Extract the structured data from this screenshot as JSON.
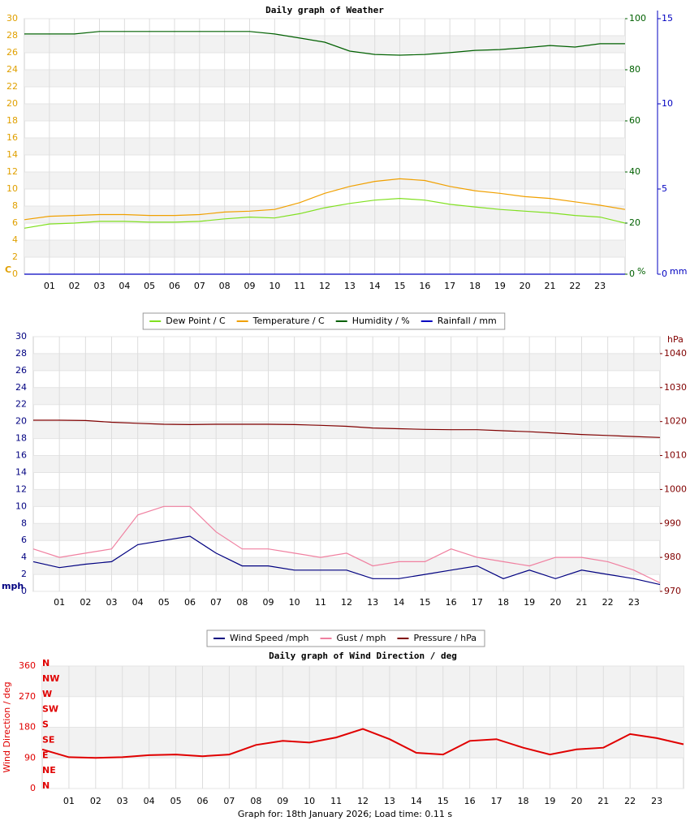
{
  "chart_data": [
    {
      "type": "line",
      "title": "Daily graph of Weather",
      "x": [
        0,
        1,
        2,
        3,
        4,
        5,
        6,
        7,
        8,
        9,
        10,
        11,
        12,
        13,
        14,
        15,
        16,
        17,
        18,
        19,
        20,
        21,
        22,
        23,
        24
      ],
      "xlim": [
        0,
        24
      ],
      "xticks": [
        {
          "value": 1,
          "label": "01"
        },
        {
          "value": 2,
          "label": "02"
        },
        {
          "value": 3,
          "label": "03"
        },
        {
          "value": 4,
          "label": "04"
        },
        {
          "value": 5,
          "label": "05"
        },
        {
          "value": 6,
          "label": "06"
        },
        {
          "value": 7,
          "label": "07"
        },
        {
          "value": 8,
          "label": "08"
        },
        {
          "value": 9,
          "label": "09"
        },
        10,
        11,
        12,
        13,
        14,
        15,
        16,
        17,
        18,
        19,
        20,
        21,
        22,
        23
      ],
      "ylim": [
        0,
        30
      ],
      "yticks": [
        0,
        2,
        4,
        6,
        8,
        10,
        12,
        14,
        16,
        18,
        20,
        22,
        24,
        26,
        28,
        30
      ],
      "y_unit": "C",
      "y2lim": [
        0,
        100
      ],
      "y2ticks": [
        0,
        20,
        40,
        60,
        80,
        100
      ],
      "y2_unit": "%",
      "y3lim": [
        0,
        15
      ],
      "y3ticks": [
        0,
        5,
        10,
        15
      ],
      "y3_unit": "mm",
      "grid": true,
      "legend": "bottom",
      "series": [
        {
          "name": "Dew Point / C",
          "color": "#80e020",
          "values": [
            5.4,
            5.9,
            6.0,
            6.2,
            6.2,
            6.1,
            6.1,
            6.2,
            6.5,
            6.7,
            6.6,
            7.1,
            7.8,
            8.3,
            8.7,
            8.9,
            8.7,
            8.2,
            7.9,
            7.6,
            7.4,
            7.2,
            6.9,
            6.7,
            6.0
          ]
        },
        {
          "name": "Temperature / C",
          "color": "#f0a000",
          "values": [
            6.4,
            6.8,
            6.9,
            7.0,
            7.0,
            6.9,
            6.9,
            7.0,
            7.3,
            7.4,
            7.6,
            8.4,
            9.5,
            10.3,
            10.9,
            11.2,
            11.0,
            10.3,
            9.8,
            9.5,
            9.1,
            8.9,
            8.5,
            8.1,
            7.6
          ]
        },
        {
          "name": "Humidity / %",
          "color": "#006000",
          "axis": "y2",
          "values": [
            94,
            94,
            94,
            95,
            95,
            95,
            95,
            95,
            95,
            95,
            94,
            92.4,
            90.8,
            87.3,
            86,
            85.7,
            86,
            86.7,
            87.6,
            87.9,
            88.6,
            89.5,
            88.9,
            90.2,
            90.2
          ]
        },
        {
          "name": "Rainfall / mm",
          "color": "#0000c0",
          "axis": "y3",
          "values": [
            0,
            0,
            0,
            0,
            0,
            0,
            0,
            0,
            0,
            0,
            0,
            0,
            0,
            0,
            0,
            0,
            0,
            0,
            0,
            0,
            0,
            0,
            0,
            0,
            0
          ]
        }
      ]
    },
    {
      "type": "line",
      "x": [
        0,
        1,
        2,
        3,
        4,
        5,
        6,
        7,
        8,
        9,
        10,
        11,
        12,
        13,
        14,
        15,
        16,
        17,
        18,
        19,
        20,
        21,
        22,
        23,
        24
      ],
      "xlim": [
        0,
        24
      ],
      "xticks": [
        {
          "value": 1,
          "label": "01"
        },
        {
          "value": 2,
          "label": "02"
        },
        {
          "value": 3,
          "label": "03"
        },
        {
          "value": 4,
          "label": "04"
        },
        {
          "value": 5,
          "label": "05"
        },
        {
          "value": 6,
          "label": "06"
        },
        {
          "value": 7,
          "label": "07"
        },
        {
          "value": 8,
          "label": "08"
        },
        {
          "value": 9,
          "label": "09"
        },
        10,
        11,
        12,
        13,
        14,
        15,
        16,
        17,
        18,
        19,
        20,
        21,
        22,
        23
      ],
      "ylim": [
        0,
        30
      ],
      "yticks": [
        0,
        2,
        4,
        6,
        8,
        10,
        12,
        14,
        16,
        18,
        20,
        22,
        24,
        26,
        28,
        30
      ],
      "y_unit": "mph",
      "y2lim": [
        970,
        1045
      ],
      "y2ticks": [
        970,
        980,
        990,
        1000,
        1010,
        1020,
        1030,
        1040
      ],
      "y2_unit": "hPa",
      "grid": true,
      "legend": "bottom",
      "series": [
        {
          "name": "Wind Speed /mph",
          "color": "#000080",
          "values": [
            3.5,
            2.8,
            3.2,
            3.5,
            5.5,
            6,
            6.5,
            4.5,
            3,
            3,
            2.5,
            2.5,
            2.5,
            1.5,
            1.5,
            2,
            2.5,
            3,
            1.5,
            2.5,
            1.5,
            2.5,
            2,
            1.5,
            0.8
          ]
        },
        {
          "name": "Gust / mph",
          "color": "#f080a0",
          "values": [
            5,
            4,
            4.5,
            5,
            9,
            10,
            10,
            7,
            5,
            5,
            4.5,
            4,
            4.5,
            3,
            3.5,
            3.5,
            5,
            4,
            3.5,
            3,
            4,
            4,
            3.5,
            2.5,
            1
          ]
        },
        {
          "name": "Pressure / hPa",
          "color": "#800000",
          "axis": "y2",
          "values": [
            1020.4,
            1020.4,
            1020.3,
            1019.8,
            1019.5,
            1019.2,
            1019.1,
            1019.2,
            1019.2,
            1019.2,
            1019.1,
            1018.9,
            1018.6,
            1018.1,
            1017.9,
            1017.7,
            1017.6,
            1017.6,
            1017.3,
            1017.0,
            1016.6,
            1016.2,
            1015.9,
            1015.6,
            1015.3
          ]
        }
      ]
    },
    {
      "type": "line",
      "title": "Daily graph of Wind Direction / deg",
      "ylabel": "Wind Direction / deg",
      "x": [
        0,
        1,
        2,
        3,
        4,
        5,
        6,
        7,
        8,
        9,
        10,
        11,
        12,
        13,
        14,
        15,
        16,
        17,
        18,
        19,
        20,
        21,
        22,
        23,
        24
      ],
      "xlim": [
        0,
        24
      ],
      "xticks": [
        {
          "value": 1,
          "label": "01"
        },
        {
          "value": 2,
          "label": "02"
        },
        {
          "value": 3,
          "label": "03"
        },
        {
          "value": 4,
          "label": "04"
        },
        {
          "value": 5,
          "label": "05"
        },
        {
          "value": 6,
          "label": "06"
        },
        {
          "value": 7,
          "label": "07"
        },
        {
          "value": 8,
          "label": "08"
        },
        {
          "value": 9,
          "label": "09"
        },
        10,
        11,
        12,
        13,
        14,
        15,
        16,
        17,
        18,
        19,
        20,
        21,
        22,
        23
      ],
      "ylim": [
        0,
        360
      ],
      "yticks": [
        0,
        90,
        180,
        270,
        360
      ],
      "compass_ticks": [
        {
          "value": 360,
          "label": "N"
        },
        {
          "value": 315,
          "label": "NW"
        },
        {
          "value": 270,
          "label": "W"
        },
        {
          "value": 225,
          "label": "SW"
        },
        {
          "value": 180,
          "label": "S"
        },
        {
          "value": 135,
          "label": "SE"
        },
        {
          "value": 90,
          "label": "E"
        },
        {
          "value": 45,
          "label": "NE"
        },
        {
          "value": 0,
          "label": "N"
        }
      ],
      "grid": true,
      "color": "#e00000",
      "values": [
        115,
        92,
        90,
        92,
        98,
        100,
        95,
        100,
        128,
        140,
        135,
        150,
        175,
        145,
        105,
        100,
        140,
        145,
        120,
        100,
        115,
        120,
        160,
        148,
        130
      ]
    }
  ],
  "footer": "Graph for: 18th January 2026; Load time: 0.11 s"
}
